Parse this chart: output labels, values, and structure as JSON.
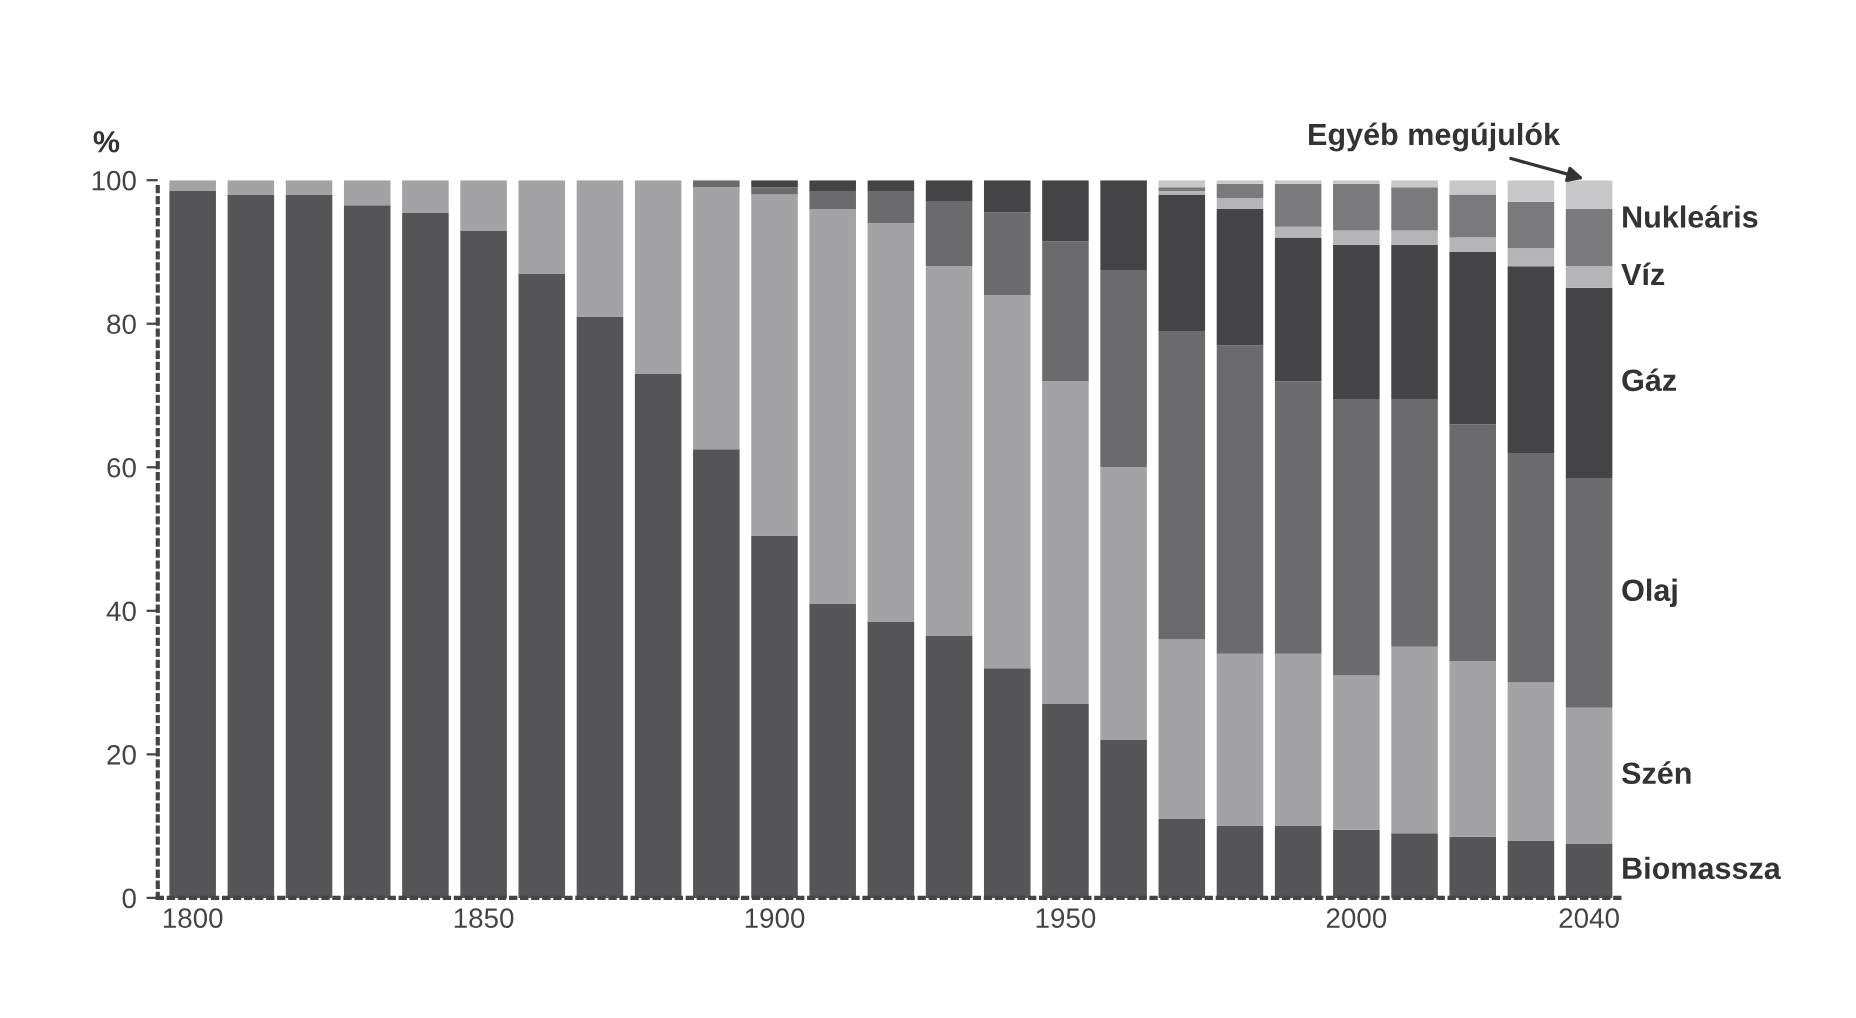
{
  "chart_data": {
    "type": "bar",
    "stacked": true,
    "ylabel": "%",
    "ylim": [
      0,
      100
    ],
    "yticks": [
      0,
      20,
      40,
      60,
      80,
      100
    ],
    "grid": false,
    "legend": false,
    "categories": [
      "1800",
      null,
      null,
      null,
      null,
      "1850",
      null,
      null,
      null,
      null,
      "1900",
      null,
      null,
      null,
      null,
      "1950",
      null,
      null,
      null,
      null,
      "2000",
      null,
      null,
      null,
      "2040"
    ],
    "series": [
      {
        "name": "Biomassza",
        "color": "#555557",
        "values": [
          98.5,
          98,
          98,
          96.5,
          95.5,
          93,
          87,
          81,
          73,
          62.5,
          50.5,
          41,
          38.5,
          36.5,
          32,
          27,
          22,
          11,
          10,
          10,
          9.5,
          9,
          8.5,
          8,
          7.5
        ]
      },
      {
        "name": "Szén",
        "color": "#a3a3a5",
        "values": [
          1.5,
          2,
          2,
          3.5,
          4.5,
          7,
          13,
          19,
          27,
          36.5,
          47.5,
          55,
          55.5,
          51.5,
          52,
          45,
          38,
          25,
          24,
          24,
          21.5,
          26,
          24.5,
          22,
          19
        ]
      },
      {
        "name": "Olaj",
        "color": "#6b6b6d",
        "values": [
          0,
          0,
          0,
          0,
          0,
          0,
          0,
          0,
          0,
          1,
          1,
          2.5,
          4.5,
          9,
          11.5,
          19.5,
          27.5,
          43,
          43,
          38,
          38.5,
          34.5,
          33,
          32,
          32
        ]
      },
      {
        "name": "Gáz",
        "color": "#444446",
        "values": [
          0,
          0,
          0,
          0,
          0,
          0,
          0,
          0,
          0,
          0,
          1,
          1.5,
          1.5,
          3,
          4.5,
          8.5,
          12.5,
          19,
          19,
          20,
          21.5,
          21.5,
          24,
          26,
          26.5
        ]
      },
      {
        "name": "Víz",
        "color": "#b5b5b7",
        "values": [
          0,
          0,
          0,
          0,
          0,
          0,
          0,
          0,
          0,
          0,
          0,
          0,
          0,
          0,
          0,
          0,
          0,
          0.5,
          1.5,
          1.5,
          2,
          2,
          2,
          2.5,
          3
        ]
      },
      {
        "name": "Nukleáris",
        "color": "#7a7a7c",
        "values": [
          0,
          0,
          0,
          0,
          0,
          0,
          0,
          0,
          0,
          0,
          0,
          0,
          0,
          0,
          0,
          0,
          0,
          0.5,
          2,
          6,
          6.5,
          6,
          6,
          6.5,
          8
        ]
      },
      {
        "name": "Egyéb megújulók",
        "color": "#c8c8ca",
        "values": [
          0,
          0,
          0,
          0,
          0,
          0,
          0,
          0,
          0,
          0,
          0,
          0,
          0,
          0,
          0,
          0,
          0,
          1,
          0.5,
          0.5,
          0.5,
          1,
          2,
          3,
          4
        ]
      }
    ]
  }
}
